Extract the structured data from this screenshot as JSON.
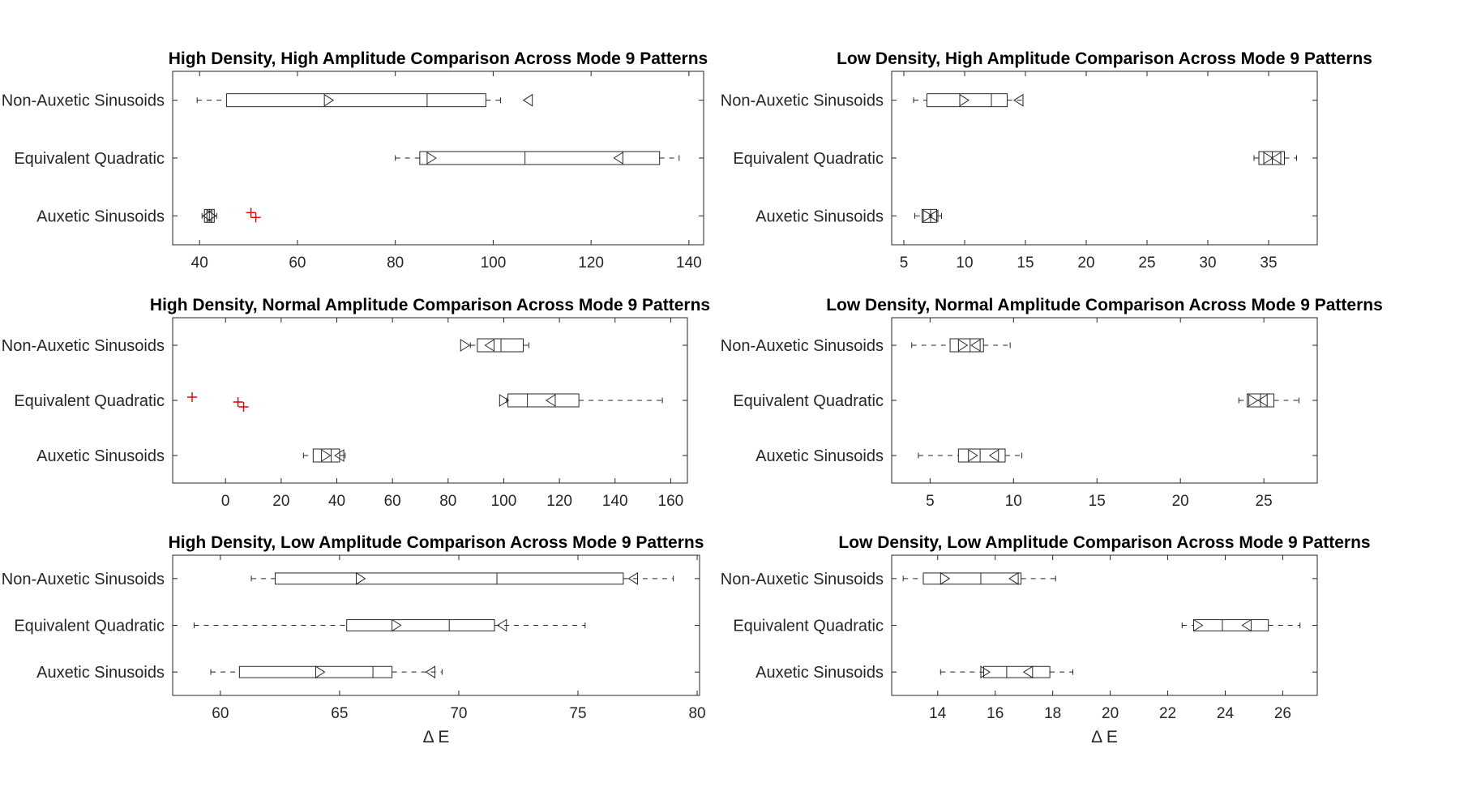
{
  "chart_data": [
    {
      "type": "box",
      "title": "High Density, High Amplitude Comparison Across Mode 9 Patterns",
      "xlabel": "",
      "categories": [
        "Non-Auxetic Sinusoids",
        "Equivalent Quadratic",
        "Auxetic Sinusoids"
      ],
      "xlim": [
        34.5,
        143
      ],
      "xticks": [
        40,
        60,
        80,
        100,
        120,
        140
      ],
      "boxes": [
        {
          "whisker_low": 39.5,
          "q1": 45.5,
          "median": 86.5,
          "q3": 98.5,
          "whisker_high": 101.5,
          "notch": [
            65.5,
            108.0
          ],
          "outliers": []
        },
        {
          "whisker_low": 80.0,
          "q1": 85.0,
          "median": 106.5,
          "q3": 134.0,
          "whisker_high": 138.0,
          "notch": [
            86.5,
            126.5
          ],
          "outliers": []
        },
        {
          "whisker_low": 40.5,
          "q1": 41.0,
          "median": 42.0,
          "q3": 43.0,
          "whisker_high": 43.5,
          "notch": [
            41.5,
            42.5
          ],
          "outliers": [
            50.5,
            51.5
          ]
        }
      ]
    },
    {
      "type": "box",
      "title": "Low Density, High Amplitude Comparison Across Mode 9 Patterns",
      "xlabel": "",
      "categories": [
        "Non-Auxetic Sinusoids",
        "Equivalent Quadratic",
        "Auxetic Sinusoids"
      ],
      "xlim": [
        4,
        39
      ],
      "xticks": [
        5,
        10,
        15,
        20,
        25,
        30,
        35
      ],
      "boxes": [
        {
          "whisker_low": 5.8,
          "q1": 6.9,
          "median": 12.2,
          "q3": 13.5,
          "whisker_high": 14.8,
          "notch": [
            9.6,
            14.8
          ],
          "outliers": []
        },
        {
          "whisker_low": 33.8,
          "q1": 34.2,
          "median": 35.3,
          "q3": 36.3,
          "whisker_high": 37.3,
          "notch": [
            34.6,
            36.0
          ],
          "outliers": []
        },
        {
          "whisker_low": 5.9,
          "q1": 6.5,
          "median": 7.2,
          "q3": 7.7,
          "whisker_high": 8.1,
          "notch": [
            6.6,
            7.8
          ],
          "outliers": []
        }
      ]
    },
    {
      "type": "box",
      "title": "High Density, Normal Amplitude Comparison Across Mode 9 Patterns",
      "xlabel": "",
      "categories": [
        "Non-Auxetic Sinusoids",
        "Equivalent Quadratic",
        "Auxetic Sinusoids"
      ],
      "xlim": [
        -19,
        166
      ],
      "xticks": [
        0,
        20,
        40,
        60,
        80,
        100,
        120,
        140,
        160
      ],
      "boxes": [
        {
          "whisker_low": 88.0,
          "q1": 90.5,
          "median": 99.0,
          "q3": 107.0,
          "whisker_high": 109.0,
          "notch": [
            84.5,
            96.5
          ],
          "outliers": []
        },
        {
          "whisker_low": 101.0,
          "q1": 101.5,
          "median": 108.5,
          "q3": 127.0,
          "whisker_high": 157.0,
          "notch": [
            98.5,
            118.5
          ],
          "outliers": [
            -12.0,
            4.5,
            6.5
          ]
        },
        {
          "whisker_low": 28.0,
          "q1": 31.5,
          "median": 38.0,
          "q3": 41.0,
          "whisker_high": 43.0,
          "notch": [
            34.5,
            42.5
          ],
          "outliers": []
        }
      ]
    },
    {
      "type": "box",
      "title": "Low Density, Normal Amplitude Comparison Across Mode 9 Patterns",
      "xlabel": "",
      "categories": [
        "Non-Auxetic Sinusoids",
        "Equivalent Quadratic",
        "Auxetic Sinusoids"
      ],
      "xlim": [
        2.7,
        28.2
      ],
      "xticks": [
        5,
        10,
        15,
        20,
        25
      ],
      "boxes": [
        {
          "whisker_low": 3.9,
          "q1": 6.2,
          "median": 7.4,
          "q3": 8.2,
          "whisker_high": 9.8,
          "notch": [
            6.7,
            8.0
          ],
          "outliers": []
        },
        {
          "whisker_low": 23.5,
          "q1": 24.0,
          "median": 24.8,
          "q3": 25.6,
          "whisker_high": 27.1,
          "notch": [
            24.1,
            25.2
          ],
          "outliers": []
        },
        {
          "whisker_low": 4.3,
          "q1": 6.7,
          "median": 8.0,
          "q3": 9.5,
          "whisker_high": 10.5,
          "notch": [
            7.3,
            9.1
          ],
          "outliers": []
        }
      ]
    },
    {
      "type": "box",
      "title": "High Density, Low Amplitude Comparison Across Mode 9 Patterns",
      "xlabel": "Δ E",
      "categories": [
        "Non-Auxetic Sinusoids",
        "Equivalent Quadratic",
        "Auxetic Sinusoids"
      ],
      "xlim": [
        58,
        80.1
      ],
      "xticks": [
        60,
        65,
        70,
        75,
        80
      ],
      "boxes": [
        {
          "whisker_low": 61.3,
          "q1": 62.3,
          "median": 71.6,
          "q3": 76.9,
          "whisker_high": 79.0,
          "notch": [
            65.7,
            77.5
          ],
          "outliers": []
        },
        {
          "whisker_low": 58.9,
          "q1": 65.3,
          "median": 69.6,
          "q3": 71.5,
          "whisker_high": 75.3,
          "notch": [
            67.2,
            72.0
          ],
          "outliers": []
        },
        {
          "whisker_low": 59.6,
          "q1": 60.8,
          "median": 66.4,
          "q3": 67.2,
          "whisker_high": 69.3,
          "notch": [
            64.0,
            69.0
          ],
          "outliers": []
        }
      ]
    },
    {
      "type": "box",
      "title": "Low Density, Low Amplitude Comparison Across Mode 9 Patterns",
      "xlabel": "Δ E",
      "categories": [
        "Non-Auxetic Sinusoids",
        "Equivalent Quadratic",
        "Auxetic Sinusoids"
      ],
      "xlim": [
        12.4,
        27.2
      ],
      "xticks": [
        14,
        16,
        18,
        20,
        22,
        24,
        26
      ],
      "boxes": [
        {
          "whisker_low": 12.8,
          "q1": 13.5,
          "median": 15.5,
          "q3": 16.9,
          "whisker_high": 18.1,
          "notch": [
            14.1,
            16.8
          ],
          "outliers": []
        },
        {
          "whisker_low": 22.5,
          "q1": 22.9,
          "median": 23.9,
          "q3": 25.5,
          "whisker_high": 26.6,
          "notch": [
            22.9,
            24.9
          ],
          "outliers": []
        },
        {
          "whisker_low": 14.1,
          "q1": 15.6,
          "median": 16.4,
          "q3": 17.9,
          "whisker_high": 18.7,
          "notch": [
            15.5,
            17.3
          ],
          "outliers": []
        }
      ]
    }
  ]
}
